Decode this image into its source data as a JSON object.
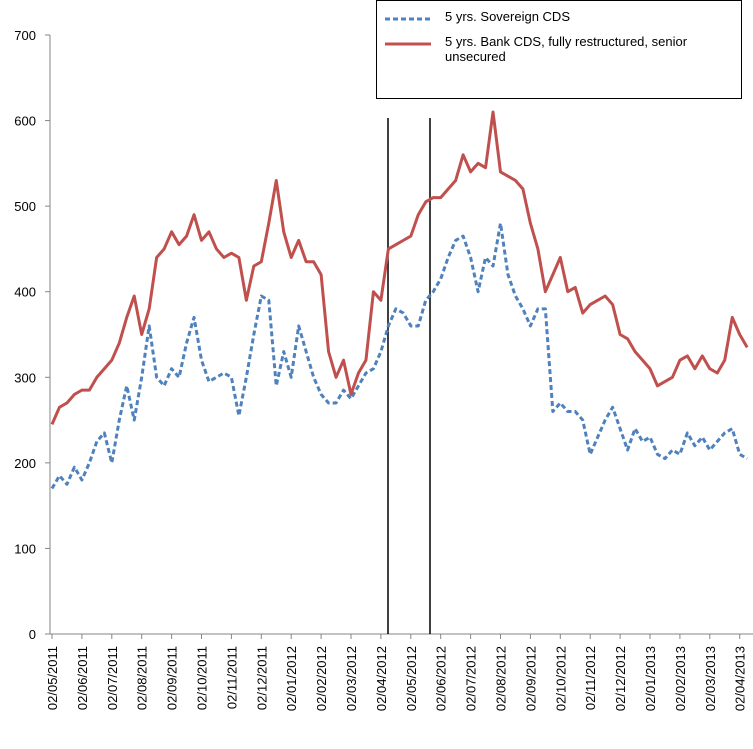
{
  "chart_data": {
    "type": "line",
    "categories": [
      "02/05/2011",
      null,
      null,
      null,
      "02/06/2011",
      null,
      null,
      null,
      "02/07/2011",
      null,
      null,
      null,
      "02/08/2011",
      null,
      null,
      null,
      "02/09/2011",
      null,
      null,
      null,
      "02/10/2011",
      null,
      null,
      null,
      "02/11/2011",
      null,
      null,
      null,
      "02/12/2011",
      null,
      null,
      null,
      "02/01/2012",
      null,
      null,
      null,
      "02/02/2012",
      null,
      null,
      null,
      "02/03/2012",
      null,
      null,
      null,
      "02/04/2012",
      null,
      null,
      null,
      "02/05/2012",
      null,
      null,
      null,
      "02/06/2012",
      null,
      null,
      null,
      "02/07/2012",
      null,
      null,
      null,
      "02/08/2012",
      null,
      null,
      null,
      "02/09/2012",
      null,
      null,
      null,
      "02/10/2012",
      null,
      null,
      null,
      "02/11/2012",
      null,
      null,
      null,
      "02/12/2012",
      null,
      null,
      null,
      "02/01/2013",
      null,
      null,
      null,
      "02/02/2013",
      null,
      null,
      null,
      "02/03/2013",
      null,
      null,
      null,
      "02/04/2013",
      null
    ],
    "series": [
      {
        "name": "5 yrs. Sovereign CDS",
        "color": "#4f81bd",
        "dashed": true,
        "values": [
          170,
          185,
          175,
          195,
          180,
          200,
          225,
          235,
          200,
          250,
          290,
          250,
          300,
          360,
          300,
          290,
          310,
          300,
          340,
          370,
          320,
          295,
          300,
          305,
          300,
          255,
          300,
          350,
          395,
          390,
          290,
          330,
          300,
          360,
          330,
          300,
          280,
          270,
          270,
          285,
          275,
          290,
          305,
          310,
          330,
          360,
          380,
          375,
          360,
          360,
          390,
          400,
          415,
          440,
          460,
          465,
          440,
          400,
          440,
          430,
          480,
          420,
          395,
          380,
          360,
          380,
          380,
          260,
          270,
          260,
          260,
          250,
          210,
          230,
          250,
          265,
          240,
          215,
          240,
          225,
          230,
          210,
          205,
          215,
          210,
          235,
          220,
          230,
          215,
          225,
          235,
          240,
          210,
          205
        ]
      },
      {
        "name": "5 yrs. Bank CDS, fully restructured, senior unsecured",
        "color": "#c0504d",
        "dashed": false,
        "values": [
          245,
          265,
          270,
          280,
          285,
          285,
          300,
          310,
          320,
          340,
          370,
          395,
          350,
          380,
          440,
          450,
          470,
          455,
          465,
          490,
          460,
          470,
          450,
          440,
          445,
          440,
          390,
          430,
          435,
          480,
          530,
          470,
          440,
          460,
          435,
          435,
          420,
          330,
          300,
          320,
          280,
          305,
          320,
          400,
          390,
          450,
          455,
          460,
          465,
          490,
          505,
          510,
          510,
          520,
          530,
          560,
          540,
          550,
          545,
          610,
          540,
          535,
          530,
          520,
          480,
          450,
          400,
          420,
          440,
          400,
          405,
          375,
          385,
          390,
          395,
          385,
          350,
          345,
          330,
          320,
          310,
          290,
          295,
          300,
          320,
          325,
          310,
          325,
          310,
          305,
          320,
          370,
          350,
          335
        ]
      }
    ],
    "ylim": [
      0,
      700
    ],
    "yticks": [
      0,
      100,
      200,
      300,
      400,
      500,
      600,
      700
    ]
  }
}
